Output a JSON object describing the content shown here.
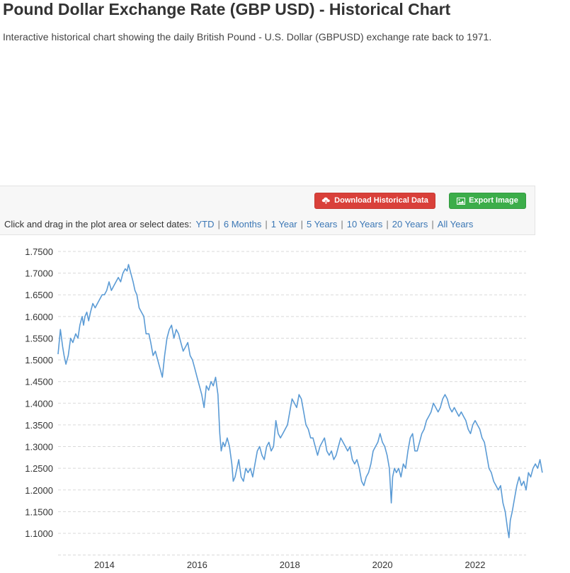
{
  "header": {
    "title": "Pound Dollar Exchange Rate (GBP USD) - Historical Chart",
    "subtitle": "Interactive historical chart showing the daily British Pound - U.S. Dollar (GBPUSD) exchange rate back to 1971."
  },
  "toolbar": {
    "download_label": "Download Historical Data",
    "download_icon": "cloud-download-icon",
    "export_label": "Export Image",
    "export_icon": "image-icon",
    "range_prompt": "Click and drag in the plot area or select dates:",
    "ranges": [
      "YTD",
      "6 Months",
      "1 Year",
      "5 Years",
      "10 Years",
      "20 Years",
      "All Years"
    ]
  },
  "colors": {
    "line": "#5b9bd5",
    "download_button": "#d9403a",
    "export_button": "#3cad4a",
    "link": "#3b77b5"
  },
  "chart_data": {
    "type": "line",
    "y_ticks": [
      "1.7500",
      "1.7000",
      "1.6500",
      "1.6000",
      "1.5500",
      "1.5000",
      "1.4500",
      "1.4000",
      "1.3500",
      "1.3000",
      "1.2500",
      "1.2000",
      "1.1500",
      "1.1000"
    ],
    "x_ticks": [
      "2014",
      "2016",
      "2018",
      "2020",
      "2022"
    ],
    "ylim": [
      1.075,
      1.75
    ],
    "xlim": [
      2013.0,
      2023.1
    ],
    "grid": true,
    "series": [
      {
        "values": [
          [
            2013.0,
            1.513
          ],
          [
            2013.05,
            1.57
          ],
          [
            2013.1,
            1.53
          ],
          [
            2013.13,
            1.51
          ],
          [
            2013.17,
            1.49
          ],
          [
            2013.22,
            1.51
          ],
          [
            2013.27,
            1.55
          ],
          [
            2013.32,
            1.54
          ],
          [
            2013.38,
            1.56
          ],
          [
            2013.43,
            1.55
          ],
          [
            2013.47,
            1.58
          ],
          [
            2013.52,
            1.6
          ],
          [
            2013.55,
            1.58
          ],
          [
            2013.58,
            1.6
          ],
          [
            2013.62,
            1.61
          ],
          [
            2013.66,
            1.59
          ],
          [
            2013.7,
            1.61
          ],
          [
            2013.75,
            1.63
          ],
          [
            2013.8,
            1.62
          ],
          [
            2013.85,
            1.63
          ],
          [
            2013.9,
            1.64
          ],
          [
            2013.95,
            1.65
          ],
          [
            2014.0,
            1.65
          ],
          [
            2014.05,
            1.66
          ],
          [
            2014.1,
            1.68
          ],
          [
            2014.15,
            1.66
          ],
          [
            2014.2,
            1.67
          ],
          [
            2014.25,
            1.68
          ],
          [
            2014.3,
            1.69
          ],
          [
            2014.35,
            1.68
          ],
          [
            2014.4,
            1.7
          ],
          [
            2014.45,
            1.71
          ],
          [
            2014.49,
            1.705
          ],
          [
            2014.52,
            1.72
          ],
          [
            2014.57,
            1.7
          ],
          [
            2014.62,
            1.68
          ],
          [
            2014.66,
            1.66
          ],
          [
            2014.7,
            1.65
          ],
          [
            2014.75,
            1.62
          ],
          [
            2014.8,
            1.61
          ],
          [
            2014.85,
            1.6
          ],
          [
            2014.9,
            1.56
          ],
          [
            2014.96,
            1.56
          ],
          [
            2015.0,
            1.54
          ],
          [
            2015.05,
            1.51
          ],
          [
            2015.1,
            1.52
          ],
          [
            2015.15,
            1.5
          ],
          [
            2015.2,
            1.48
          ],
          [
            2015.25,
            1.46
          ],
          [
            2015.3,
            1.51
          ],
          [
            2015.35,
            1.55
          ],
          [
            2015.4,
            1.57
          ],
          [
            2015.45,
            1.58
          ],
          [
            2015.5,
            1.55
          ],
          [
            2015.55,
            1.57
          ],
          [
            2015.6,
            1.56
          ],
          [
            2015.65,
            1.54
          ],
          [
            2015.7,
            1.52
          ],
          [
            2015.75,
            1.53
          ],
          [
            2015.8,
            1.54
          ],
          [
            2015.85,
            1.51
          ],
          [
            2015.9,
            1.5
          ],
          [
            2015.95,
            1.48
          ],
          [
            2016.0,
            1.46
          ],
          [
            2016.05,
            1.44
          ],
          [
            2016.1,
            1.42
          ],
          [
            2016.15,
            1.39
          ],
          [
            2016.2,
            1.44
          ],
          [
            2016.25,
            1.43
          ],
          [
            2016.3,
            1.45
          ],
          [
            2016.35,
            1.44
          ],
          [
            2016.4,
            1.46
          ],
          [
            2016.45,
            1.42
          ],
          [
            2016.49,
            1.33
          ],
          [
            2016.52,
            1.29
          ],
          [
            2016.56,
            1.31
          ],
          [
            2016.6,
            1.3
          ],
          [
            2016.65,
            1.32
          ],
          [
            2016.7,
            1.3
          ],
          [
            2016.75,
            1.26
          ],
          [
            2016.78,
            1.22
          ],
          [
            2016.82,
            1.23
          ],
          [
            2016.86,
            1.25
          ],
          [
            2016.9,
            1.27
          ],
          [
            2016.95,
            1.23
          ],
          [
            2017.0,
            1.22
          ],
          [
            2017.05,
            1.25
          ],
          [
            2017.1,
            1.24
          ],
          [
            2017.15,
            1.25
          ],
          [
            2017.2,
            1.23
          ],
          [
            2017.25,
            1.26
          ],
          [
            2017.3,
            1.29
          ],
          [
            2017.35,
            1.3
          ],
          [
            2017.4,
            1.28
          ],
          [
            2017.45,
            1.27
          ],
          [
            2017.5,
            1.3
          ],
          [
            2017.55,
            1.31
          ],
          [
            2017.6,
            1.29
          ],
          [
            2017.65,
            1.3
          ],
          [
            2017.7,
            1.36
          ],
          [
            2017.75,
            1.33
          ],
          [
            2017.8,
            1.32
          ],
          [
            2017.85,
            1.33
          ],
          [
            2017.9,
            1.34
          ],
          [
            2017.95,
            1.35
          ],
          [
            2018.0,
            1.38
          ],
          [
            2018.05,
            1.41
          ],
          [
            2018.1,
            1.4
          ],
          [
            2018.15,
            1.39
          ],
          [
            2018.2,
            1.42
          ],
          [
            2018.25,
            1.41
          ],
          [
            2018.3,
            1.38
          ],
          [
            2018.35,
            1.35
          ],
          [
            2018.4,
            1.34
          ],
          [
            2018.45,
            1.32
          ],
          [
            2018.5,
            1.32
          ],
          [
            2018.55,
            1.3
          ],
          [
            2018.6,
            1.28
          ],
          [
            2018.65,
            1.3
          ],
          [
            2018.7,
            1.31
          ],
          [
            2018.75,
            1.32
          ],
          [
            2018.8,
            1.29
          ],
          [
            2018.85,
            1.28
          ],
          [
            2018.9,
            1.29
          ],
          [
            2018.95,
            1.27
          ],
          [
            2019.0,
            1.28
          ],
          [
            2019.05,
            1.3
          ],
          [
            2019.1,
            1.32
          ],
          [
            2019.15,
            1.31
          ],
          [
            2019.2,
            1.3
          ],
          [
            2019.25,
            1.29
          ],
          [
            2019.3,
            1.3
          ],
          [
            2019.35,
            1.27
          ],
          [
            2019.4,
            1.26
          ],
          [
            2019.45,
            1.27
          ],
          [
            2019.5,
            1.25
          ],
          [
            2019.55,
            1.22
          ],
          [
            2019.6,
            1.21
          ],
          [
            2019.65,
            1.23
          ],
          [
            2019.7,
            1.24
          ],
          [
            2019.75,
            1.26
          ],
          [
            2019.8,
            1.29
          ],
          [
            2019.85,
            1.3
          ],
          [
            2019.9,
            1.31
          ],
          [
            2019.95,
            1.33
          ],
          [
            2020.0,
            1.31
          ],
          [
            2020.05,
            1.3
          ],
          [
            2020.1,
            1.28
          ],
          [
            2020.15,
            1.25
          ],
          [
            2020.19,
            1.17
          ],
          [
            2020.22,
            1.23
          ],
          [
            2020.26,
            1.25
          ],
          [
            2020.3,
            1.24
          ],
          [
            2020.35,
            1.25
          ],
          [
            2020.4,
            1.23
          ],
          [
            2020.45,
            1.26
          ],
          [
            2020.5,
            1.25
          ],
          [
            2020.55,
            1.29
          ],
          [
            2020.6,
            1.32
          ],
          [
            2020.65,
            1.33
          ],
          [
            2020.7,
            1.29
          ],
          [
            2020.75,
            1.29
          ],
          [
            2020.8,
            1.31
          ],
          [
            2020.85,
            1.33
          ],
          [
            2020.9,
            1.34
          ],
          [
            2020.95,
            1.36
          ],
          [
            2021.0,
            1.37
          ],
          [
            2021.05,
            1.38
          ],
          [
            2021.1,
            1.4
          ],
          [
            2021.15,
            1.39
          ],
          [
            2021.2,
            1.38
          ],
          [
            2021.25,
            1.39
          ],
          [
            2021.3,
            1.41
          ],
          [
            2021.35,
            1.42
          ],
          [
            2021.4,
            1.41
          ],
          [
            2021.45,
            1.39
          ],
          [
            2021.5,
            1.38
          ],
          [
            2021.55,
            1.39
          ],
          [
            2021.6,
            1.38
          ],
          [
            2021.65,
            1.37
          ],
          [
            2021.7,
            1.38
          ],
          [
            2021.75,
            1.37
          ],
          [
            2021.8,
            1.36
          ],
          [
            2021.85,
            1.34
          ],
          [
            2021.9,
            1.33
          ],
          [
            2021.95,
            1.35
          ],
          [
            2022.0,
            1.36
          ],
          [
            2022.05,
            1.35
          ],
          [
            2022.1,
            1.34
          ],
          [
            2022.15,
            1.32
          ],
          [
            2022.2,
            1.31
          ],
          [
            2022.25,
            1.28
          ],
          [
            2022.3,
            1.25
          ],
          [
            2022.35,
            1.24
          ],
          [
            2022.4,
            1.22
          ],
          [
            2022.45,
            1.21
          ],
          [
            2022.5,
            1.2
          ],
          [
            2022.55,
            1.21
          ],
          [
            2022.6,
            1.17
          ],
          [
            2022.65,
            1.15
          ],
          [
            2022.7,
            1.11
          ],
          [
            2022.73,
            1.09
          ],
          [
            2022.76,
            1.13
          ],
          [
            2022.8,
            1.15
          ],
          [
            2022.85,
            1.18
          ],
          [
            2022.9,
            1.21
          ],
          [
            2022.95,
            1.23
          ],
          [
            2023.0,
            1.21
          ],
          [
            2023.05,
            1.22
          ],
          [
            2023.1,
            1.2
          ],
          [
            2023.15,
            1.24
          ],
          [
            2023.2,
            1.23
          ],
          [
            2023.25,
            1.25
          ],
          [
            2023.3,
            1.26
          ],
          [
            2023.35,
            1.25
          ],
          [
            2023.4,
            1.27
          ],
          [
            2023.45,
            1.24
          ]
        ]
      }
    ]
  }
}
